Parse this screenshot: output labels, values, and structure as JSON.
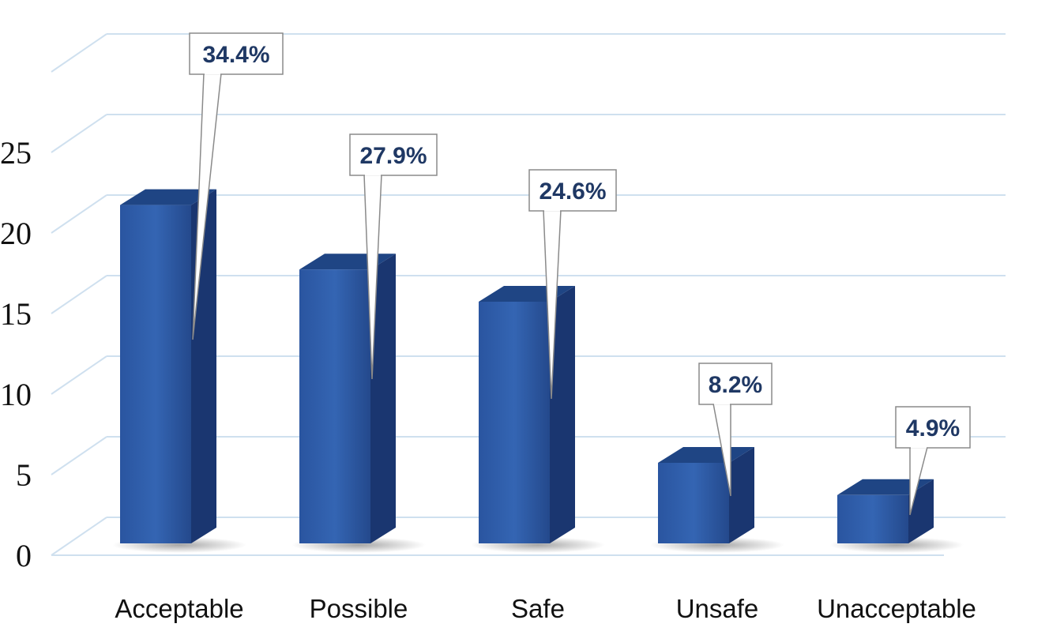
{
  "chart_data": {
    "type": "bar",
    "categories": [
      "Acceptable",
      "Possible",
      "Safe",
      "Unsafe",
      "Unacceptable"
    ],
    "values": [
      21,
      17,
      15,
      5,
      3
    ],
    "data_labels": [
      "34.4%",
      "27.9%",
      "24.6%",
      "8.2%",
      "4.9%"
    ],
    "y_ticks": [
      "0",
      "5",
      "10",
      "15",
      "20",
      "25"
    ],
    "ylim": [
      0,
      25
    ],
    "title": "",
    "xlabel": "",
    "ylabel": "",
    "grid": true,
    "legend": "none",
    "style": "3d-column-with-callouts",
    "colors": {
      "bar_front": "#2c5aa8",
      "bar_side": "#1a3670",
      "bar_top": "#1f4584",
      "gridline": "#cfe0ef",
      "label_text": "#1f3864",
      "callout_border": "#8a8a8a"
    }
  }
}
